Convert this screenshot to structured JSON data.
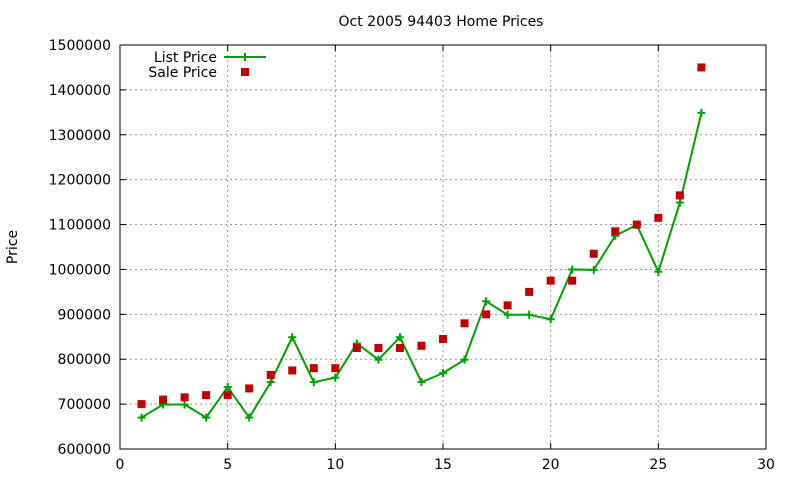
{
  "chart_data": {
    "type": "line",
    "title": "Oct 2005 94403 Home Prices",
    "xlabel": "",
    "ylabel": "Price",
    "xlim": [
      0,
      30
    ],
    "ylim": [
      600000,
      1500000
    ],
    "xticks": [
      0,
      5,
      10,
      15,
      20,
      25,
      30
    ],
    "yticks": [
      600000,
      700000,
      800000,
      900000,
      1000000,
      1100000,
      1200000,
      1300000,
      1400000,
      1500000
    ],
    "grid": true,
    "legend_position": "top-left",
    "series": [
      {
        "name": "List Price",
        "style": "line+cross",
        "color": "#00a000",
        "x": [
          1,
          2,
          3,
          4,
          5,
          6,
          7,
          8,
          9,
          10,
          11,
          12,
          13,
          14,
          15,
          16,
          17,
          18,
          19,
          20,
          21,
          22,
          23,
          24,
          25,
          26,
          27
        ],
        "y": [
          670000,
          699000,
          699000,
          670000,
          738000,
          670000,
          749000,
          849000,
          749000,
          759000,
          835000,
          799000,
          849000,
          749000,
          769000,
          799000,
          929000,
          899000,
          899000,
          889000,
          1000000,
          999000,
          1075000,
          1099000,
          995000,
          1149000,
          1349000
        ]
      },
      {
        "name": "Sale Price",
        "style": "square",
        "color": "#c00000",
        "x": [
          1,
          2,
          3,
          4,
          5,
          6,
          7,
          8,
          9,
          10,
          11,
          12,
          13,
          14,
          15,
          16,
          17,
          18,
          19,
          20,
          21,
          22,
          23,
          24,
          25,
          26,
          27
        ],
        "y": [
          700000,
          710000,
          715000,
          720000,
          720000,
          735000,
          765000,
          775000,
          780000,
          780000,
          825000,
          825000,
          825000,
          830000,
          845000,
          880000,
          900000,
          920000,
          950000,
          975000,
          975000,
          1035000,
          1085000,
          1100000,
          1115000,
          1165000,
          1450000
        ]
      }
    ]
  }
}
